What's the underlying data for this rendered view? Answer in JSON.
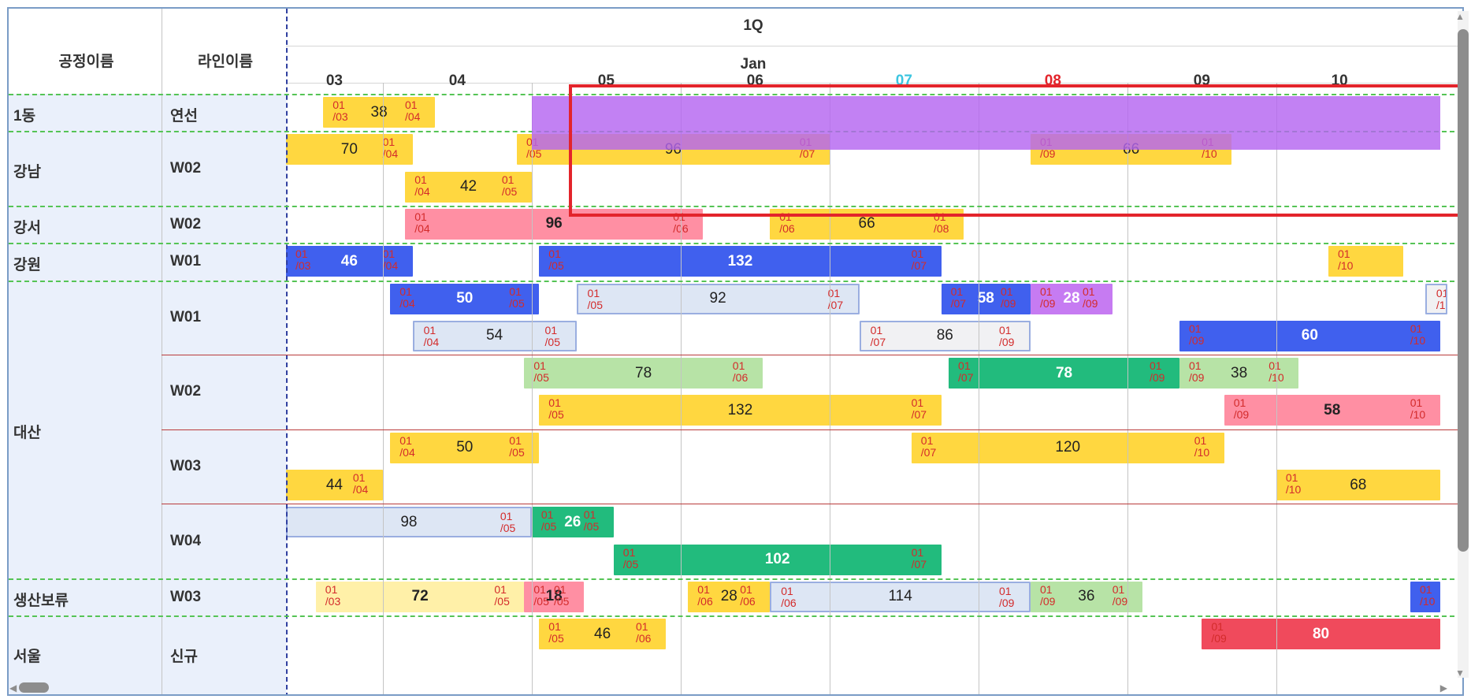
{
  "header": {
    "col1": "공정이름",
    "col2": "라인이름",
    "quarter": "1Q",
    "month": "Jan",
    "days": [
      {
        "label": "03",
        "color": "#333333"
      },
      {
        "label": "04",
        "color": "#333333"
      },
      {
        "label": "05",
        "color": "#333333"
      },
      {
        "label": "06",
        "color": "#333333"
      },
      {
        "label": "07",
        "color": "#3cc5e0"
      },
      {
        "label": "08",
        "color": "#e3242b"
      },
      {
        "label": "09",
        "color": "#333333"
      },
      {
        "label": "10",
        "color": "#333333"
      }
    ]
  },
  "groups": [
    {
      "name": "1동",
      "lines": [
        "연선"
      ]
    },
    {
      "name": "강남",
      "lines": [
        "W02"
      ]
    },
    {
      "name": "강서",
      "lines": [
        "W02"
      ]
    },
    {
      "name": "강원",
      "lines": [
        "W01"
      ]
    },
    {
      "name": "대산",
      "lines": [
        "W01",
        "W02",
        "W03",
        "W04"
      ]
    },
    {
      "name": "생산보류",
      "lines": [
        "W03"
      ]
    },
    {
      "name": "서울",
      "lines": [
        "신규"
      ]
    }
  ],
  "palette": {
    "yellow": "#ffd740",
    "lightyellow": "#fff0a8",
    "pink": "#ff8fa3",
    "blue": "#4060ee",
    "lightblue": "#dde6f4",
    "lightgray": "#f1f1f3",
    "lightgreen": "#b7e3a6",
    "green": "#22bb7d",
    "purple": "#c67bf2",
    "red": "#f04a5c"
  },
  "bars": [
    {
      "row": 0,
      "from": 0.25,
      "to": 1.0,
      "value": "38",
      "start": "01\n/03",
      "end": "01\n/04",
      "color": "yellow"
    },
    {
      "row": 1,
      "from": 0.0,
      "to": 0.85,
      "value": "70",
      "start": "",
      "end": "01\n/04",
      "color": "yellow"
    },
    {
      "row": 1,
      "from": 1.55,
      "to": 3.65,
      "value": "96",
      "start": "01\n/05",
      "end": "01\n/07",
      "color": "yellow"
    },
    {
      "row": 1,
      "from": 5.0,
      "to": 6.35,
      "value": "66",
      "start": "01\n/09",
      "end": "01\n/10",
      "color": "yellow"
    },
    {
      "row": 2,
      "from": 0.8,
      "to": 1.65,
      "value": "42",
      "start": "01\n/04",
      "end": "01\n/05",
      "color": "yellow"
    },
    {
      "row": 3,
      "from": 0.8,
      "to": 2.8,
      "value": "96",
      "start": "01\n/04",
      "end": "01\n/06",
      "color": "pink",
      "bold": true
    },
    {
      "row": 3,
      "from": 3.25,
      "to": 4.55,
      "value": "66",
      "start": "01\n/06",
      "end": "01\n/08",
      "color": "yellow"
    },
    {
      "row": 4,
      "from": 0.0,
      "to": 0.85,
      "value": "46",
      "start": "01\n/03",
      "end": "01\n/04",
      "color": "blue",
      "bold": true
    },
    {
      "row": 4,
      "from": 1.7,
      "to": 4.4,
      "value": "132",
      "start": "01\n/05",
      "end": "01\n/07",
      "color": "blue",
      "bold": true
    },
    {
      "row": 4,
      "from": 7.0,
      "to": 7.5,
      "value": "",
      "start": "01\n/10",
      "end": "",
      "color": "yellow"
    },
    {
      "row": 5,
      "from": 0.7,
      "to": 1.7,
      "value": "50",
      "start": "01\n/04",
      "end": "01\n/05",
      "color": "blue",
      "bold": true
    },
    {
      "row": 5,
      "from": 1.95,
      "to": 3.85,
      "value": "92",
      "start": "01\n/05",
      "end": "01\n/07",
      "color": "lightblue"
    },
    {
      "row": 5,
      "from": 4.4,
      "to": 5.0,
      "value": "58",
      "start": "01\n/07",
      "end": "01\n/09",
      "color": "blue",
      "bold": true
    },
    {
      "row": 5,
      "from": 5.0,
      "to": 5.55,
      "value": "28",
      "start": "01\n/09",
      "end": "01\n/09",
      "color": "purple",
      "bold": true
    },
    {
      "row": 5,
      "from": 7.65,
      "to": 7.8,
      "value": "",
      "start": "01\n/1",
      "end": "",
      "color": "lightgray"
    },
    {
      "row": 6,
      "from": 0.85,
      "to": 1.95,
      "value": "54",
      "start": "01\n/04",
      "end": "01\n/05",
      "color": "lightblue"
    },
    {
      "row": 6,
      "from": 3.85,
      "to": 5.0,
      "value": "86",
      "start": "01\n/07",
      "end": "01\n/09",
      "color": "lightgray"
    },
    {
      "row": 6,
      "from": 6.0,
      "to": 7.75,
      "value": "60",
      "start": "01\n/09",
      "end": "01\n/10",
      "color": "blue",
      "bold": true
    },
    {
      "row": 7,
      "from": 1.6,
      "to": 3.2,
      "value": "78",
      "start": "01\n/05",
      "end": "01\n/06",
      "color": "lightgreen"
    },
    {
      "row": 7,
      "from": 4.45,
      "to": 6.0,
      "value": "78",
      "start": "01\n/07",
      "end": "01\n/09",
      "color": "green",
      "bold": true
    },
    {
      "row": 7,
      "from": 6.0,
      "to": 6.8,
      "value": "38",
      "start": "01\n/09",
      "end": "01\n/10",
      "color": "lightgreen"
    },
    {
      "row": 8,
      "from": 1.7,
      "to": 4.4,
      "value": "132",
      "start": "01\n/05",
      "end": "01\n/07",
      "color": "yellow"
    },
    {
      "row": 8,
      "from": 6.3,
      "to": 7.75,
      "value": "58",
      "start": "01\n/09",
      "end": "01\n/10",
      "color": "pink",
      "bold": true
    },
    {
      "row": 9,
      "from": 0.7,
      "to": 1.7,
      "value": "50",
      "start": "01\n/04",
      "end": "01\n/05",
      "color": "yellow"
    },
    {
      "row": 9,
      "from": 4.2,
      "to": 6.3,
      "value": "120",
      "start": "01\n/07",
      "end": "01\n/10",
      "color": "yellow"
    },
    {
      "row": 10,
      "from": 0.0,
      "to": 0.65,
      "value": "44",
      "start": "",
      "end": "01\n/04",
      "color": "yellow"
    },
    {
      "row": 10,
      "from": 6.65,
      "to": 7.75,
      "value": "68",
      "start": "01\n/10",
      "end": "",
      "color": "yellow"
    },
    {
      "row": 11,
      "from": 0.0,
      "to": 1.65,
      "value": "98",
      "start": "",
      "end": "01\n/05",
      "color": "lightblue"
    },
    {
      "row": 11,
      "from": 1.65,
      "to": 2.2,
      "value": "26",
      "start": "01\n/05",
      "end": "01\n/05",
      "color": "green",
      "bold": true
    },
    {
      "row": 12,
      "from": 2.2,
      "to": 4.4,
      "value": "102",
      "start": "01\n/05",
      "end": "01\n/07",
      "color": "green",
      "bold": true
    },
    {
      "row": 13,
      "from": 0.2,
      "to": 1.6,
      "value": "72",
      "start": "01\n/03",
      "end": "01\n/05",
      "color": "lightyellow",
      "bold": true
    },
    {
      "row": 13,
      "from": 1.6,
      "to": 2.0,
      "value": "18",
      "start": "01\n/05",
      "end": "01\n/05",
      "color": "pink",
      "bold": true
    },
    {
      "row": 13,
      "from": 2.7,
      "to": 3.25,
      "value": "28",
      "start": "01\n/06",
      "end": "01\n/06",
      "color": "yellow"
    },
    {
      "row": 13,
      "from": 3.25,
      "to": 5.0,
      "value": "114",
      "start": "01\n/06",
      "end": "01\n/09",
      "color": "lightblue"
    },
    {
      "row": 13,
      "from": 5.0,
      "to": 5.75,
      "value": "36",
      "start": "01\n/09",
      "end": "01\n/09",
      "color": "lightgreen"
    },
    {
      "row": 13,
      "from": 7.55,
      "to": 7.75,
      "value": "",
      "start": "01\n/10",
      "end": "",
      "color": "blue"
    },
    {
      "row": 14,
      "from": 1.7,
      "to": 2.55,
      "value": "46",
      "start": "01\n/05",
      "end": "01\n/06",
      "color": "yellow"
    },
    {
      "row": 14,
      "from": 6.15,
      "to": 7.75,
      "value": "80",
      "start": "01\n/09",
      "end": "",
      "color": "red",
      "bold": true
    }
  ],
  "overlay": {
    "from": 1.65,
    "to": 7.75,
    "color": "#b565f0"
  }
}
